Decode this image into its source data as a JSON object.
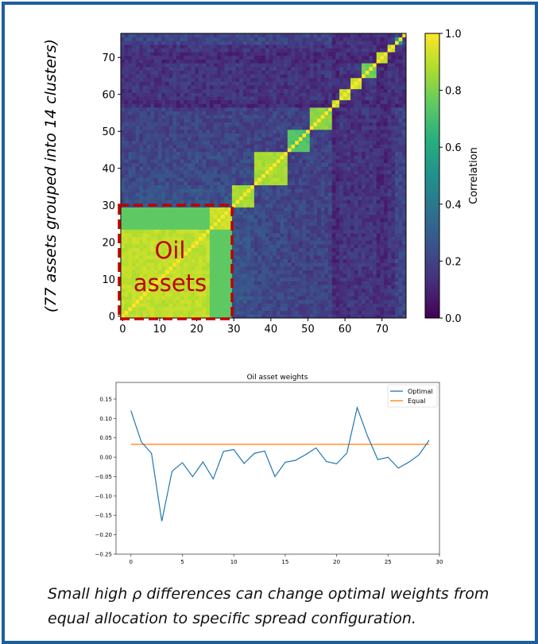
{
  "chart_data": [
    {
      "type": "heatmap",
      "ylabel": "(77 assets grouped into 14 clusters)",
      "n": 77,
      "xlim": [
        -0.5,
        76.5
      ],
      "ylim": [
        -0.5,
        76.5
      ],
      "xticks": [
        "0",
        "10",
        "20",
        "30",
        "40",
        "50",
        "60",
        "70"
      ],
      "yticks": [
        "0",
        "10",
        "20",
        "30",
        "40",
        "50",
        "60",
        "70"
      ],
      "colormap": "viridis",
      "colorbar": {
        "label": "Correlation",
        "range": [
          0.0,
          1.0
        ],
        "ticks": [
          "0.0",
          "0.2",
          "0.4",
          "0.6",
          "0.8",
          "1.0"
        ]
      },
      "clusters": [
        {
          "start": 0,
          "end": 23,
          "intra": 0.93,
          "background": 0.3
        },
        {
          "start": 24,
          "end": 29,
          "intra": 0.95,
          "background": 0.3
        },
        {
          "start": 30,
          "end": 35,
          "intra": 0.9,
          "background": 0.25
        },
        {
          "start": 36,
          "end": 44,
          "intra": 0.9,
          "background": 0.22
        },
        {
          "start": 45,
          "end": 50,
          "intra": 0.75,
          "background": 0.2
        },
        {
          "start": 51,
          "end": 56,
          "intra": 0.85,
          "background": 0.2
        },
        {
          "start": 57,
          "end": 58,
          "intra": 0.95,
          "background": 0.12
        },
        {
          "start": 59,
          "end": 61,
          "intra": 0.95,
          "background": 0.15
        },
        {
          "start": 62,
          "end": 64,
          "intra": 0.95,
          "background": 0.15
        },
        {
          "start": 65,
          "end": 68,
          "intra": 0.8,
          "background": 0.15
        },
        {
          "start": 69,
          "end": 71,
          "intra": 0.95,
          "background": 0.12
        },
        {
          "start": 72,
          "end": 73,
          "intra": 0.95,
          "background": 0.15
        },
        {
          "start": 74,
          "end": 75,
          "intra": 0.6,
          "background": 0.2
        },
        {
          "start": 76,
          "end": 76,
          "intra": 1.0,
          "background": 0.2
        }
      ],
      "oil_cross_correlation": 0.75,
      "annotation": {
        "text_line1": "Oil",
        "text_line2": "assets",
        "range": [
          0,
          29
        ],
        "color": "#c00000"
      }
    },
    {
      "type": "line",
      "title": "Oil asset weights",
      "xlim": [
        -1.45,
        30
      ],
      "ylim": [
        -0.25,
        0.193
      ],
      "xticks": [
        0,
        5,
        10,
        15,
        20,
        25,
        30
      ],
      "yticks": [
        0.15,
        0.1,
        0.05,
        0.0,
        -0.05,
        -0.1,
        -0.15,
        -0.2,
        -0.25
      ],
      "ytick_labels": [
        "0.15",
        "0.10",
        "0.05",
        "0.00",
        "−0.05",
        "−0.10",
        "−0.15",
        "−0.20",
        "−0.25"
      ],
      "legend": "top-right",
      "x": [
        0,
        1,
        2,
        3,
        4,
        5,
        6,
        7,
        8,
        9,
        10,
        11,
        12,
        13,
        14,
        15,
        16,
        17,
        18,
        19,
        20,
        21,
        22,
        23,
        24,
        25,
        26,
        27,
        28,
        29
      ],
      "series": [
        {
          "name": "Optimal",
          "color": "#1f77b4",
          "values": [
            0.12,
            0.04,
            0.01,
            -0.165,
            -0.036,
            -0.014,
            -0.05,
            -0.012,
            -0.056,
            0.015,
            0.02,
            -0.016,
            0.01,
            0.016,
            -0.05,
            -0.013,
            -0.008,
            0.007,
            0.024,
            -0.011,
            -0.017,
            0.011,
            0.128,
            0.055,
            -0.006,
            0.0,
            -0.028,
            -0.013,
            0.006,
            0.044
          ]
        },
        {
          "name": "Equal",
          "color": "#ff7f0e",
          "values": [
            0.0333,
            0.0333,
            0.0333,
            0.0333,
            0.0333,
            0.0333,
            0.0333,
            0.0333,
            0.0333,
            0.0333,
            0.0333,
            0.0333,
            0.0333,
            0.0333,
            0.0333,
            0.0333,
            0.0333,
            0.0333,
            0.0333,
            0.0333,
            0.0333,
            0.0333,
            0.0333,
            0.0333,
            0.0333,
            0.0333,
            0.0333,
            0.0333,
            0.0333,
            0.0333
          ]
        }
      ]
    }
  ],
  "caption": {
    "line1": "Small high ρ differences can change optimal weights from",
    "line2": "equal allocation to specific spread configuration."
  },
  "colors": {
    "frame": "#1d5f9e",
    "annotation": "#c00000"
  }
}
